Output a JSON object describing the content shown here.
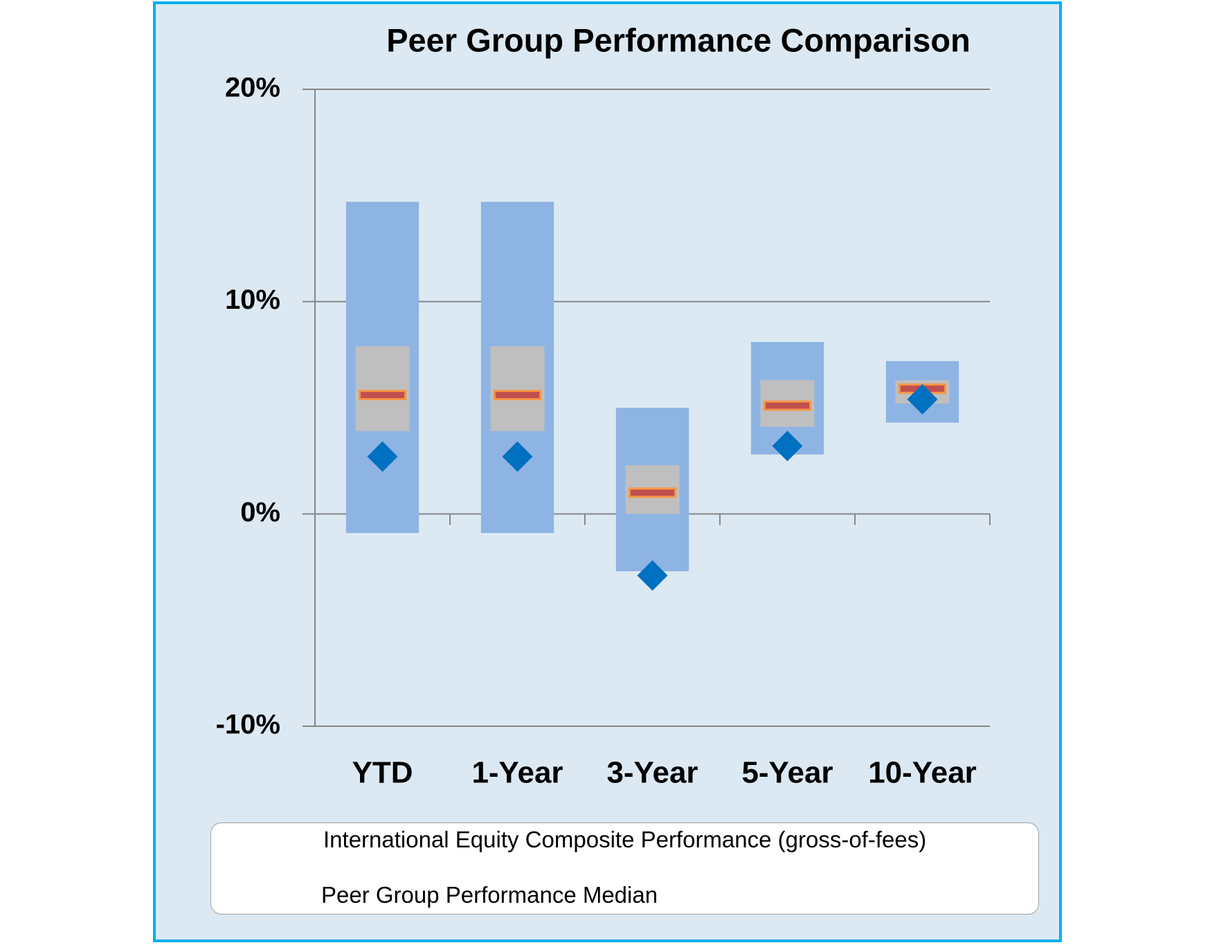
{
  "chart_data": {
    "type": "range",
    "title": "Peer Group Performance Comparison",
    "categories": [
      "YTD",
      "1-Year",
      "3-Year",
      "5-Year",
      "10-Year"
    ],
    "range_low": [
      -0.9,
      -0.9,
      -2.7,
      2.8,
      4.3
    ],
    "range_high": [
      14.7,
      14.7,
      5.0,
      8.1,
      7.2
    ],
    "range_color": "#8eb4e3",
    "iqr_low": [
      3.9,
      3.9,
      0,
      4.1,
      5.2
    ],
    "iqr_high": [
      7.9,
      7.9,
      2.3,
      6.3,
      6.3
    ],
    "iqr_color": "#bfbfbf",
    "series": [
      {
        "name": "International Equity Composite Performance (gross-of-fees)",
        "color": "#0070c0",
        "values": [
          2.7,
          2.7,
          -2.9,
          3.2,
          5.4
        ]
      },
      {
        "name": "Peer Group Performance Median",
        "color": "#c0504d",
        "values": [
          5.6,
          5.6,
          1.0,
          5.1,
          5.9
        ]
      }
    ],
    "ylim": [
      -10,
      20
    ],
    "yticks": [
      {
        "value": -10,
        "label": "-10%"
      },
      {
        "value": 0,
        "label": "0%"
      },
      {
        "value": 10,
        "label": "10%"
      },
      {
        "value": 20,
        "label": "20%"
      }
    ],
    "grid": true
  }
}
